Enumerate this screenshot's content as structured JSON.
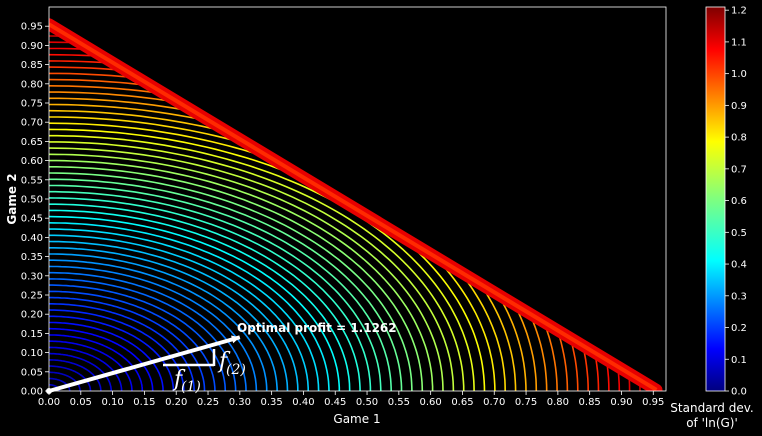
{
  "chart_data": {
    "type": "contour",
    "xlabel": "Game 1",
    "ylabel": "Game 2",
    "xlim": [
      0,
      0.97
    ],
    "ylim": [
      0,
      1.0
    ],
    "x_ticks": [
      "0.00",
      "0.05",
      "0.10",
      "0.15",
      "0.20",
      "0.25",
      "0.30",
      "0.35",
      "0.40",
      "0.45",
      "0.50",
      "0.55",
      "0.60",
      "0.65",
      "0.70",
      "0.75",
      "0.80",
      "0.85",
      "0.90",
      "0.95"
    ],
    "y_ticks": [
      "0.00",
      "0.05",
      "0.10",
      "0.15",
      "0.20",
      "0.25",
      "0.30",
      "0.35",
      "0.40",
      "0.45",
      "0.50",
      "0.55",
      "0.60",
      "0.65",
      "0.70",
      "0.75",
      "0.80",
      "0.85",
      "0.90",
      "0.95"
    ],
    "feasible_region": "triangle x >= 0, y >= 0, x + y <= 0.96",
    "colormap": "jet",
    "colorbar": {
      "min": 0.0,
      "max": 1.21,
      "ticks": [
        "0.0",
        "0.1",
        "0.2",
        "0.3",
        "0.4",
        "0.5",
        "0.6",
        "0.7",
        "0.8",
        "0.9",
        "1.0",
        "1.1",
        "1.2"
      ],
      "title_line1": "Standard dev.",
      "title_line2": "of 'ln(G)'"
    },
    "optimal_point": {
      "x": 0.3,
      "y": 0.14
    },
    "annotation": "Optimal profit = 1.1262",
    "f1_label": "f",
    "f1_sub": "(1)",
    "f2_label": "f",
    "f2_sub": "(2)",
    "grid": false
  }
}
